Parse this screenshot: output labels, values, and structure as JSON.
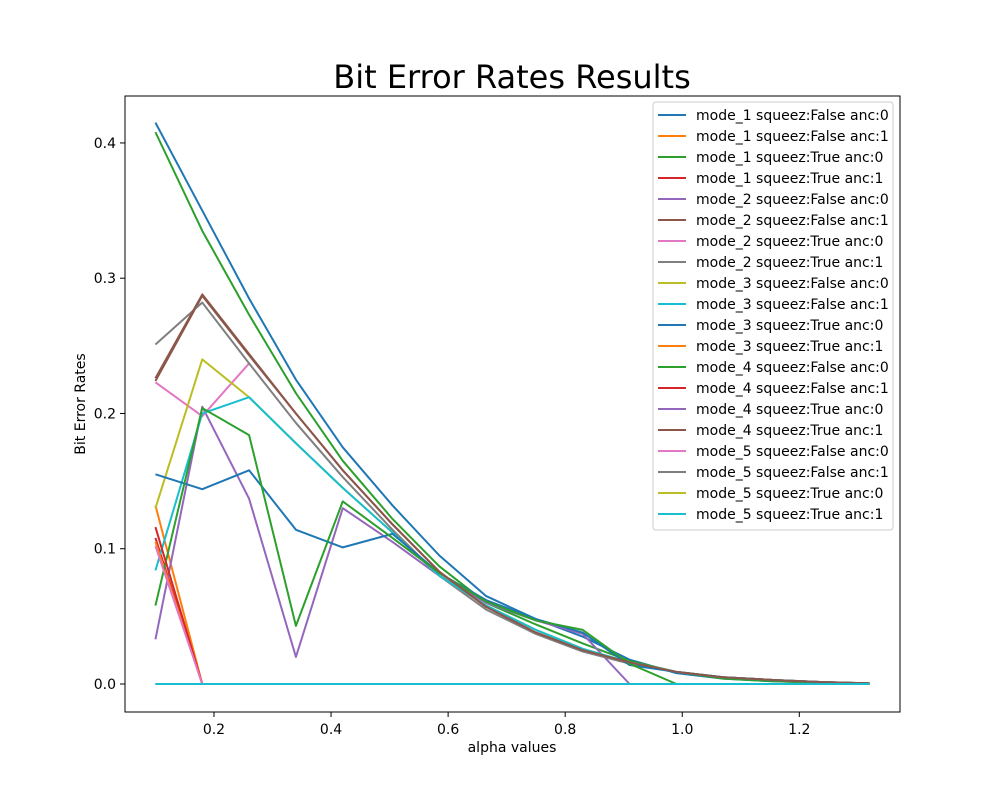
{
  "chart_data": {
    "type": "line",
    "title": "Bit Error Rates Results",
    "xlabel": "alpha values",
    "ylabel": "Bit Error Rates",
    "xlim": [
      0.048,
      1.372
    ],
    "ylim": [
      -0.0207,
      0.4347
    ],
    "xticks": [
      0.2,
      0.4,
      0.6,
      0.8,
      1.0,
      1.2
    ],
    "xtick_labels": [
      "0.2",
      "0.4",
      "0.6",
      "0.8",
      "1.0",
      "1.2"
    ],
    "yticks": [
      0.0,
      0.1,
      0.2,
      0.3,
      0.4
    ],
    "ytick_labels": [
      "0.0",
      "0.1",
      "0.2",
      "0.3",
      "0.4"
    ],
    "grid": false,
    "legend_position": "top-right",
    "x": [
      0.1,
      0.18,
      0.26,
      0.34,
      0.42,
      0.505,
      0.585,
      0.665,
      0.75,
      0.83,
      0.91,
      0.99,
      1.07,
      1.155,
      1.235,
      1.32
    ],
    "series": [
      {
        "name": "mode_1 squeez:False anc:0",
        "color": "#1f77b4",
        "values": [
          0.415,
          0.35,
          0.285,
          0.225,
          0.175,
          0.132,
          0.095,
          0.065,
          0.048,
          0.035,
          0.018,
          0.008,
          0.004,
          0.002,
          0.001,
          0.0005
        ]
      },
      {
        "name": "mode_1 squeez:False anc:1",
        "color": "#ff7f0e",
        "values": [
          0.132,
          0.0,
          0.0,
          0.0,
          0.0,
          0.0,
          0.0,
          0.0,
          0.0,
          0.0,
          0.0,
          0.0,
          0.0,
          0.0,
          0.0,
          0.0
        ]
      },
      {
        "name": "mode_1 squeez:True anc:0",
        "color": "#2ca02c",
        "values": [
          0.408,
          0.335,
          0.273,
          0.215,
          0.165,
          0.122,
          0.087,
          0.06,
          0.044,
          0.03,
          0.017,
          0.009,
          0.004,
          0.002,
          0.001,
          0.0005
        ]
      },
      {
        "name": "mode_1 squeez:True anc:1",
        "color": "#d62728",
        "values": [
          0.108,
          0.0,
          0.0,
          0.0,
          0.0,
          0.0,
          0.0,
          0.0,
          0.0,
          0.0,
          0.0,
          0.0,
          0.0,
          0.0,
          0.0,
          0.0
        ]
      },
      {
        "name": "mode_2 squeez:False anc:0",
        "color": "#9467bd",
        "values": [
          0.033,
          0.205,
          0.137,
          0.02,
          0.13,
          0.105,
          0.08,
          0.06,
          0.047,
          0.037,
          0.0,
          0.0,
          0.0,
          0.0,
          0.0,
          0.0
        ]
      },
      {
        "name": "mode_2 squeez:False anc:1",
        "color": "#8c564b",
        "values": [
          0.224,
          0.287,
          0.243,
          0.2,
          0.158,
          0.118,
          0.083,
          0.057,
          0.038,
          0.025,
          0.016,
          0.009,
          0.005,
          0.003,
          0.0015,
          0.0005
        ]
      },
      {
        "name": "mode_2 squeez:True anc:0",
        "color": "#e377c2",
        "values": [
          0.223,
          0.198,
          0.237,
          null,
          null,
          null,
          null,
          null,
          null,
          null,
          null,
          null,
          null,
          null,
          null,
          null
        ]
      },
      {
        "name": "mode_2 squeez:True anc:1",
        "color": "#7f7f7f",
        "values": [
          0.251,
          0.282,
          0.237,
          0.193,
          0.153,
          0.114,
          0.08,
          0.055,
          0.037,
          0.024,
          0.015,
          0.009,
          0.005,
          0.003,
          0.0015,
          0.0005
        ]
      },
      {
        "name": "mode_3 squeez:False anc:0",
        "color": "#bcbd22",
        "values": [
          0.13,
          0.24,
          0.212,
          0.178,
          0.145,
          0.112,
          0.08,
          0.058,
          0.04,
          0.026,
          0.016,
          0.009,
          0.005,
          0.003,
          0.0015,
          0.0005
        ]
      },
      {
        "name": "mode_3 squeez:False anc:1",
        "color": "#17becf",
        "values": [
          0.084,
          0.2,
          0.212,
          0.178,
          0.145,
          0.112,
          0.08,
          0.058,
          0.04,
          0.026,
          0.016,
          0.009,
          0.005,
          0.003,
          0.0015,
          0.0005
        ]
      },
      {
        "name": "mode_3 squeez:True anc:0",
        "color": "#1f77b4",
        "values": [
          0.155,
          0.144,
          0.158,
          0.114,
          0.101,
          0.111,
          0.082,
          0.062,
          0.048,
          0.038,
          0.014,
          0.009,
          0.005,
          0.003,
          0.0015,
          0.0005
        ]
      },
      {
        "name": "mode_3 squeez:True anc:1",
        "color": "#ff7f0e",
        "values": [
          0.105,
          0.0,
          0.0,
          0.0,
          0.0,
          0.0,
          0.0,
          0.0,
          0.0,
          0.0,
          0.0,
          0.0,
          0.0,
          0.0,
          0.0,
          0.0
        ]
      },
      {
        "name": "mode_4 squeez:False anc:0",
        "color": "#2ca02c",
        "values": [
          0.058,
          0.204,
          0.184,
          0.043,
          0.135,
          0.108,
          0.082,
          0.061,
          0.047,
          0.04,
          0.015,
          0.0,
          0.0,
          0.0,
          0.0,
          0.0
        ]
      },
      {
        "name": "mode_4 squeez:False anc:1",
        "color": "#d62728",
        "values": [
          0.116,
          0.0,
          0.0,
          0.0,
          0.0,
          0.0,
          0.0,
          0.0,
          0.0,
          0.0,
          0.0,
          0.0,
          0.0,
          0.0,
          0.0,
          0.0
        ]
      },
      {
        "name": "mode_4 squeez:True anc:0",
        "color": "#9467bd",
        "values": [
          0.0,
          0.0,
          0.0,
          0.0,
          0.0,
          0.0,
          0.0,
          0.0,
          0.0,
          0.0,
          0.0,
          0.0,
          0.0,
          0.0,
          0.0,
          0.0
        ]
      },
      {
        "name": "mode_4 squeez:True anc:1",
        "color": "#8c564b",
        "values": [
          0.226,
          0.288,
          0.244,
          0.2,
          0.158,
          0.118,
          0.083,
          0.057,
          0.038,
          0.025,
          0.016,
          0.009,
          0.005,
          0.003,
          0.0015,
          0.0005
        ]
      },
      {
        "name": "mode_5 squeez:False anc:0",
        "color": "#e377c2",
        "values": [
          0.102,
          0.0,
          0.0,
          0.0,
          0.0,
          0.0,
          0.0,
          0.0,
          0.0,
          0.0,
          0.0,
          0.0,
          0.0,
          0.0,
          0.0,
          0.0
        ]
      },
      {
        "name": "mode_5 squeez:False anc:1",
        "color": "#7f7f7f",
        "values": [
          0.0,
          0.0,
          0.0,
          0.0,
          0.0,
          0.0,
          0.0,
          0.0,
          0.0,
          0.0,
          0.0,
          0.0,
          0.0,
          0.0,
          0.0,
          0.0
        ]
      },
      {
        "name": "mode_5 squeez:True anc:0",
        "color": "#bcbd22",
        "values": [
          0.0,
          0.0,
          0.0,
          0.0,
          0.0,
          0.0,
          0.0,
          0.0,
          0.0,
          0.0,
          0.0,
          0.0,
          0.0,
          0.0,
          0.0,
          0.0
        ]
      },
      {
        "name": "mode_5 squeez:True anc:1",
        "color": "#17becf",
        "values": [
          0.0,
          0.0,
          0.0,
          0.0,
          0.0,
          0.0,
          0.0,
          0.0,
          0.0,
          0.0,
          0.0,
          0.0,
          0.0,
          0.0,
          0.0,
          0.0
        ]
      }
    ]
  }
}
